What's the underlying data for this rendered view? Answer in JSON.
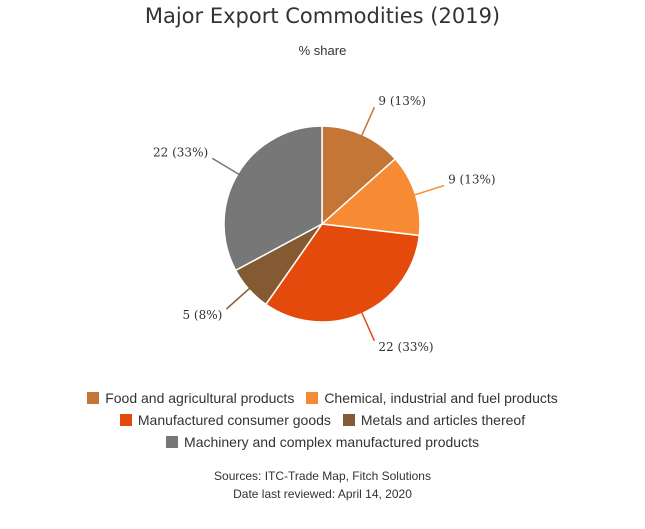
{
  "chart_data": {
    "type": "pie",
    "title": "Major Export Commodities (2019)",
    "subtitle": "% share",
    "slices": [
      {
        "name": "Food and agricultural products",
        "value": 9,
        "percent": "13%",
        "label": "9 (13%)",
        "color": "#c47637"
      },
      {
        "name": "Chemical, industrial and fuel products",
        "value": 9,
        "percent": "13%",
        "label": "9 (13%)",
        "color": "#f68b33"
      },
      {
        "name": "Manufactured consumer goods",
        "value": 22,
        "percent": "33%",
        "label": "22 (33%)",
        "color": "#e34a0c"
      },
      {
        "name": "Metals and articles thereof",
        "value": 5,
        "percent": "8%",
        "label": "5 (8%)",
        "color": "#845a32"
      },
      {
        "name": "Machinery and complex manufactured products",
        "value": 22,
        "percent": "33%",
        "label": "22 (33%)",
        "color": "#777777"
      }
    ],
    "legend_position": "bottom"
  },
  "footer": {
    "sources": "Sources: ITC-Trade Map, Fitch Solutions",
    "reviewed": "Date last reviewed: April 14, 2020"
  }
}
